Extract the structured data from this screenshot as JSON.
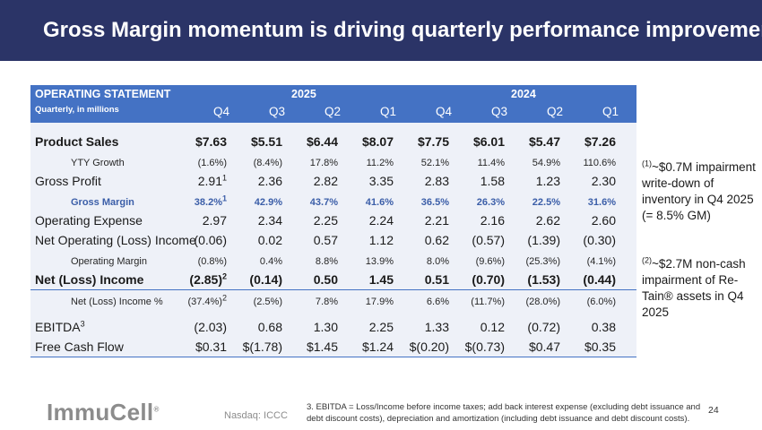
{
  "title": "Gross Margin momentum is driving quarterly performance improvement",
  "table": {
    "header_title": "OPERATING STATEMENT",
    "header_subtitle": "Quarterly, in millions",
    "years": [
      "2025",
      "2024"
    ],
    "quarters": [
      "Q4",
      "Q3",
      "Q2",
      "Q1",
      "Q4",
      "Q3",
      "Q2",
      "Q1"
    ],
    "rows": [
      {
        "label": "Product Sales",
        "values": [
          "$7.63",
          "$5.51",
          "$6.44",
          "$8.07",
          "$7.75",
          "$6.01",
          "$5.47",
          "$7.26"
        ]
      },
      {
        "label": "YTY Growth",
        "values": [
          "(1.6%)",
          "(8.4%)",
          "17.8%",
          "11.2%",
          "52.1%",
          "11.4%",
          "54.9%",
          "110.6%"
        ]
      },
      {
        "label": "Gross Profit",
        "values": [
          "2.91",
          "2.36",
          "2.82",
          "3.35",
          "2.83",
          "1.58",
          "1.23",
          "2.30"
        ],
        "first_footnote": "1"
      },
      {
        "label": "Gross Margin",
        "values": [
          "38.2%",
          "42.9%",
          "43.7%",
          "41.6%",
          "36.5%",
          "26.3%",
          "22.5%",
          "31.6%"
        ],
        "first_footnote": "1"
      },
      {
        "label": "Operating Expense",
        "values": [
          "2.97",
          "2.34",
          "2.25",
          "2.24",
          "2.21",
          "2.16",
          "2.62",
          "2.60"
        ]
      },
      {
        "label": "Net Operating (Loss) Income",
        "values": [
          "(0.06)",
          "0.02",
          "0.57",
          "1.12",
          "0.62",
          "(0.57)",
          "(1.39)",
          "(0.30)"
        ]
      },
      {
        "label": "Operating Margin",
        "values": [
          "(0.8%)",
          "0.4%",
          "8.8%",
          "13.9%",
          "8.0%",
          "(9.6%)",
          "(25.3%)",
          "(4.1%)"
        ]
      },
      {
        "label": "Net (Loss) Income",
        "values": [
          "(2.85)",
          "(0.14)",
          "0.50",
          "1.45",
          "0.51",
          "(0.70)",
          "(1.53)",
          "(0.44)"
        ],
        "first_footnote": "2"
      },
      {
        "label": "Net (Loss) Income %",
        "values": [
          "(37.4%)",
          "(2.5%)",
          "7.8%",
          "17.9%",
          "6.6%",
          "(11.7%)",
          "(28.0%)",
          "(6.0%)"
        ],
        "first_footnote": "2"
      },
      {
        "label": "EBITDA",
        "label_footnote": "3",
        "values": [
          "(2.03)",
          "0.68",
          "1.30",
          "2.25",
          "1.33",
          "0.12",
          "(0.72)",
          "0.38"
        ]
      },
      {
        "label": "Free Cash Flow",
        "values": [
          "$0.31",
          "$(1.78)",
          "$1.45",
          "$1.24",
          "$(0.20)",
          "$(0.73)",
          "$0.47",
          "$0.35"
        ]
      }
    ]
  },
  "notes": [
    {
      "ref": "(1)",
      "text": "~$0.7M impairment write-down of inventory in Q4 2025 (= 8.5% GM)"
    },
    {
      "ref": "(2)",
      "text": "~$2.7M non-cash impairment of Re-Tain® assets in Q4 2025"
    }
  ],
  "footer": {
    "logo": "ImmuCell",
    "logo_mark": "®",
    "ticker": "Nasdaq: ICCC",
    "footnote": "3. EBITDA = Loss/Income before income taxes; add back interest expense (excluding debt issuance and debt discount costs), depreciation and amortization (including debt issuance and debt discount costs).",
    "page_number": "24"
  },
  "colors": {
    "title_bar": "#2b3467",
    "table_header": "#4472c4",
    "table_body": "#eef1f8",
    "gross_margin_text": "#3b5ea8"
  }
}
